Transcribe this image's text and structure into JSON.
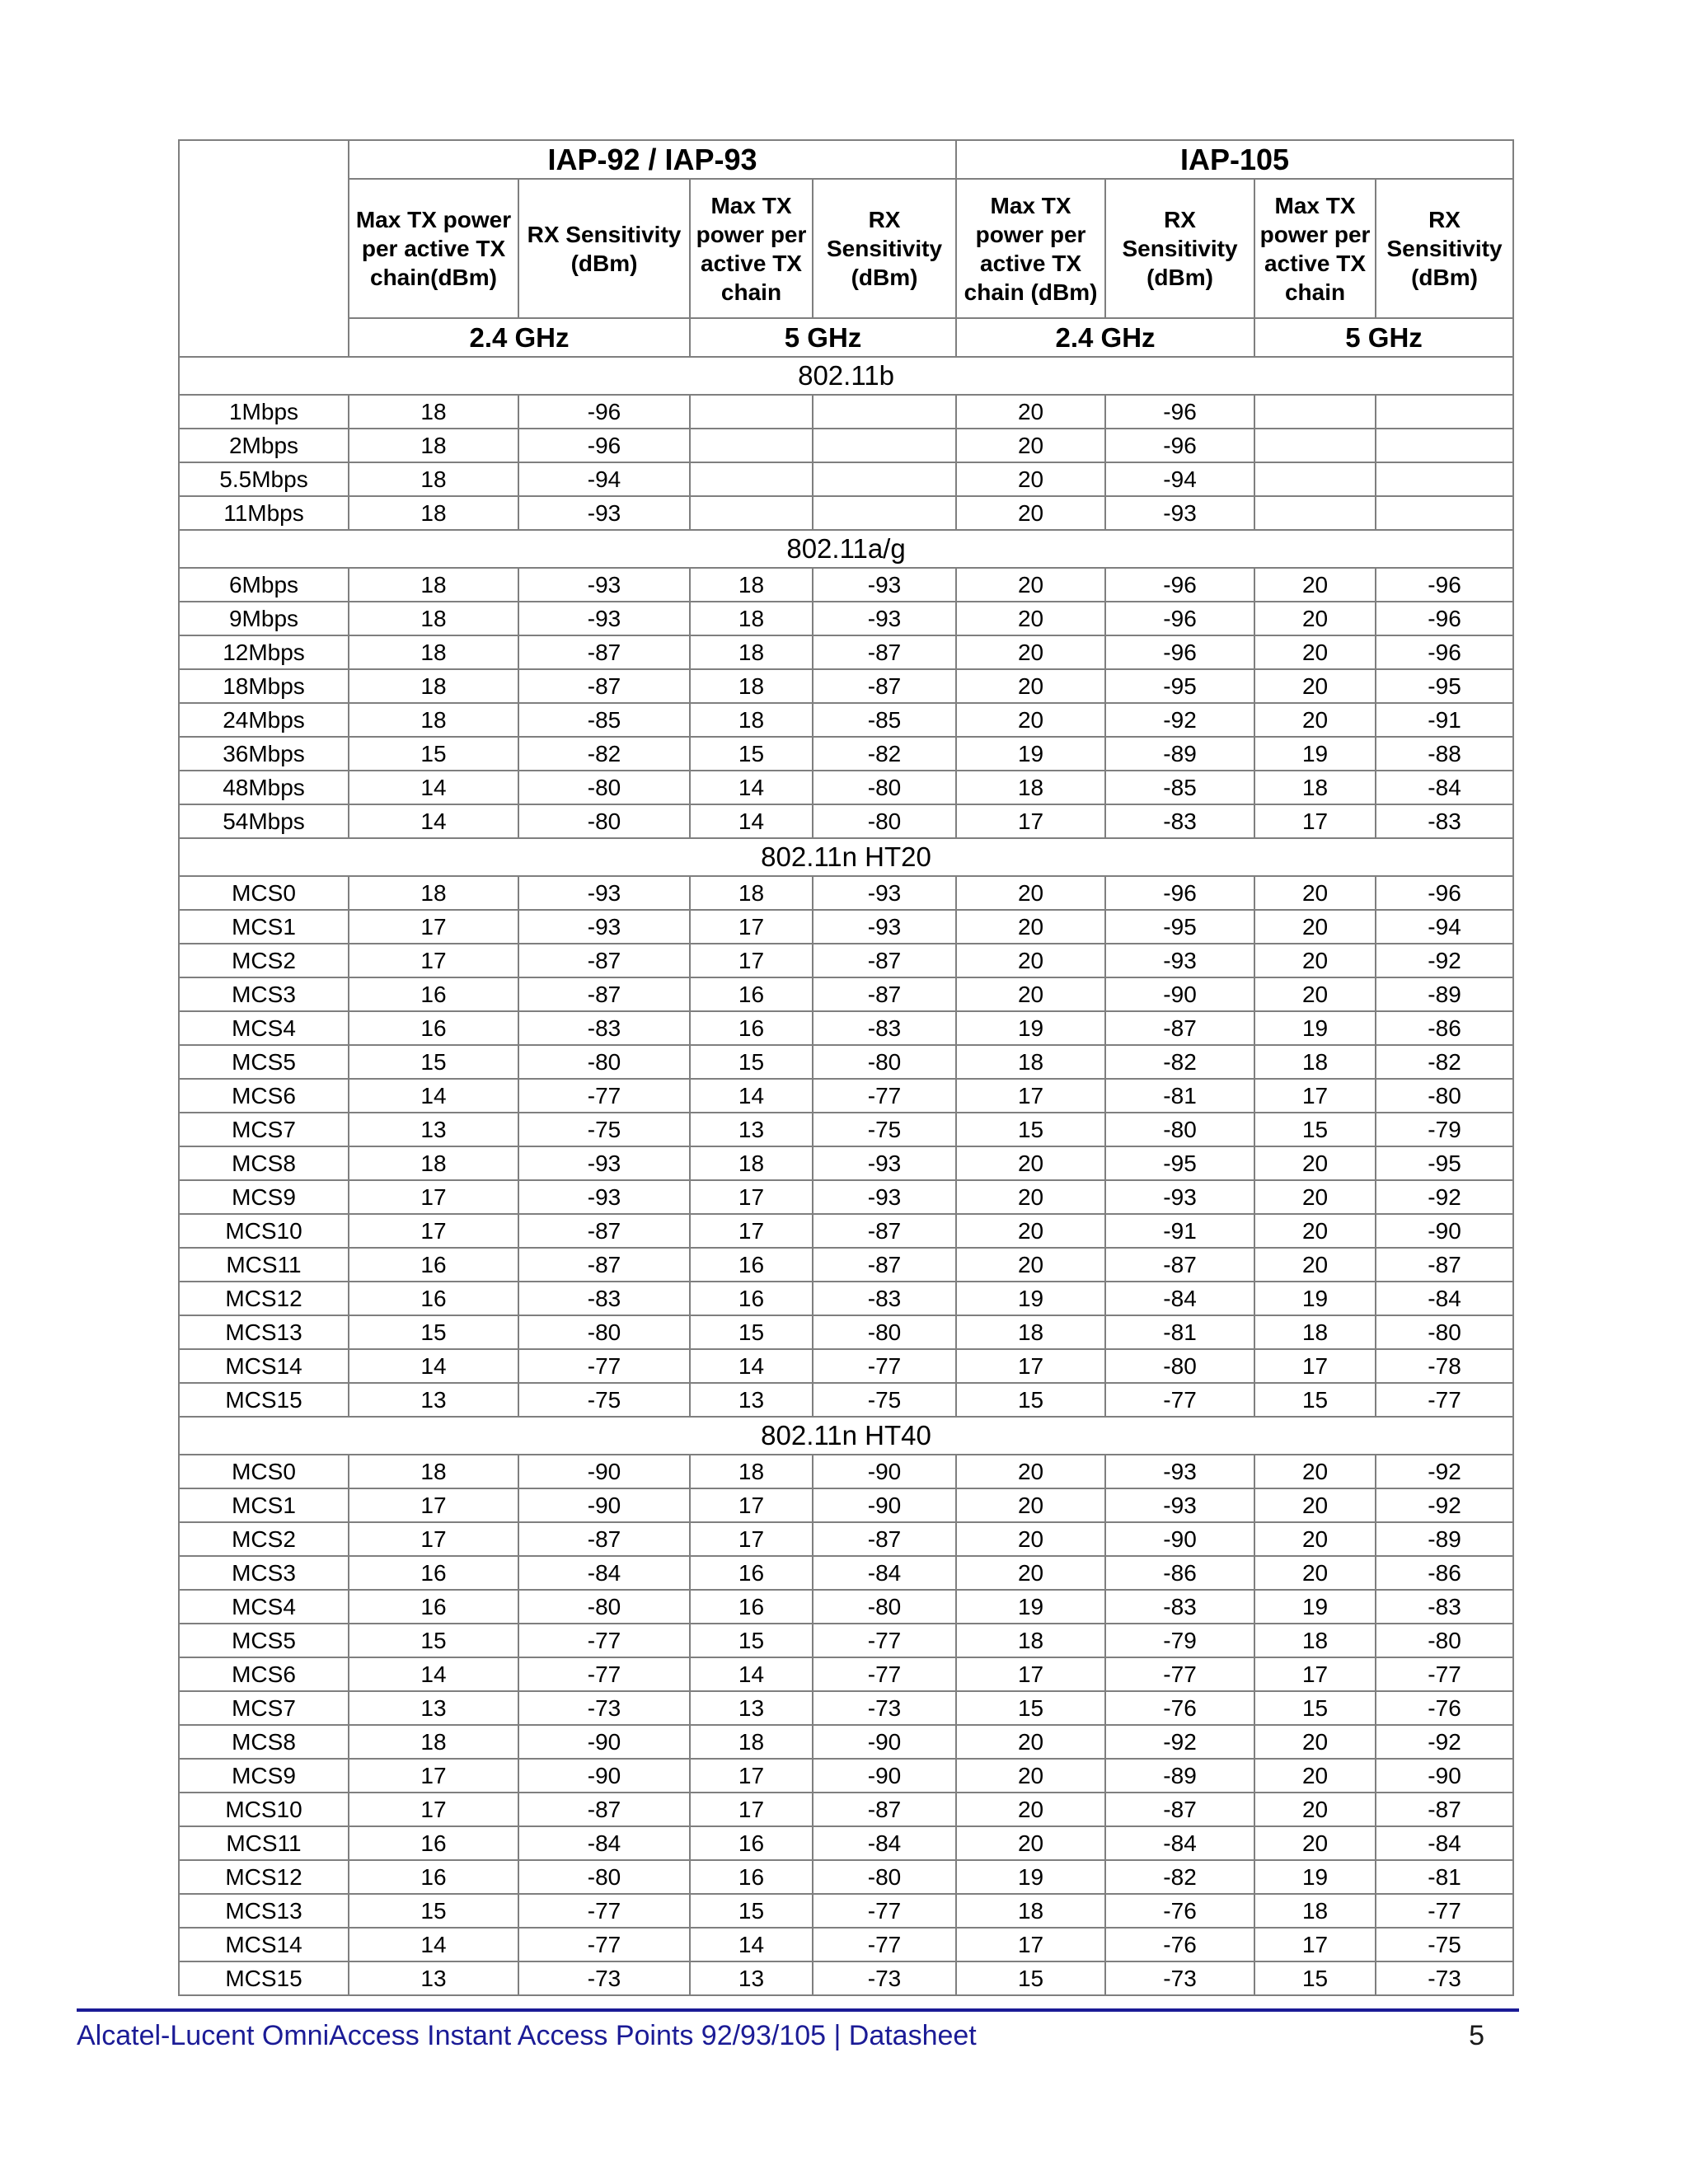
{
  "page": {
    "footer_title": "Alcatel-Lucent OmniAccess Instant Access Points 92/93/105 | Datasheet",
    "page_number": "5"
  },
  "colors": {
    "header_fill": "#94cdda",
    "section_fill": "#dcedf2",
    "border": "#7f7f7f",
    "footer_accent": "#1b1b96",
    "page_number": "#1a1a1a"
  },
  "table": {
    "groups": [
      {
        "label": "IAP-92 / IAP-93"
      },
      {
        "label": "IAP-105"
      }
    ],
    "column_headers": [
      "Max TX power per active TX chain(dBm)",
      "RX Sensitivity (dBm)",
      "Max TX power per active TX chain",
      "RX Sensitivity (dBm)",
      "Max TX power per active TX chain (dBm)",
      "RX Sensitivity (dBm)",
      "Max TX power per active TX chain",
      "RX Sensitivity (dBm)"
    ],
    "band_headers": [
      "2.4 GHz",
      "5 GHz",
      "2.4 GHz",
      "5 GHz"
    ],
    "sections": [
      {
        "label": "802.11b",
        "rows": [
          {
            "label": "1Mbps",
            "values": [
              "18",
              "-96",
              "",
              "",
              "20",
              "-96",
              "",
              ""
            ]
          },
          {
            "label": "2Mbps",
            "values": [
              "18",
              "-96",
              "",
              "",
              "20",
              "-96",
              "",
              ""
            ]
          },
          {
            "label": "5.5Mbps",
            "values": [
              "18",
              "-94",
              "",
              "",
              "20",
              "-94",
              "",
              ""
            ]
          },
          {
            "label": "11Mbps",
            "values": [
              "18",
              "-93",
              "",
              "",
              "20",
              "-93",
              "",
              ""
            ]
          }
        ]
      },
      {
        "label": "802.11a/g",
        "rows": [
          {
            "label": "6Mbps",
            "values": [
              "18",
              "-93",
              "18",
              "-93",
              "20",
              "-96",
              "20",
              "-96"
            ]
          },
          {
            "label": "9Mbps",
            "values": [
              "18",
              "-93",
              "18",
              "-93",
              "20",
              "-96",
              "20",
              "-96"
            ]
          },
          {
            "label": "12Mbps",
            "values": [
              "18",
              "-87",
              "18",
              "-87",
              "20",
              "-96",
              "20",
              "-96"
            ]
          },
          {
            "label": "18Mbps",
            "values": [
              "18",
              "-87",
              "18",
              "-87",
              "20",
              "-95",
              "20",
              "-95"
            ]
          },
          {
            "label": "24Mbps",
            "values": [
              "18",
              "-85",
              "18",
              "-85",
              "20",
              "-92",
              "20",
              "-91"
            ]
          },
          {
            "label": "36Mbps",
            "values": [
              "15",
              "-82",
              "15",
              "-82",
              "19",
              "-89",
              "19",
              "-88"
            ]
          },
          {
            "label": "48Mbps",
            "values": [
              "14",
              "-80",
              "14",
              "-80",
              "18",
              "-85",
              "18",
              "-84"
            ]
          },
          {
            "label": "54Mbps",
            "values": [
              "14",
              "-80",
              "14",
              "-80",
              "17",
              "-83",
              "17",
              "-83"
            ]
          }
        ]
      },
      {
        "label": "802.11n HT20",
        "rows": [
          {
            "label": "MCS0",
            "values": [
              "18",
              "-93",
              "18",
              "-93",
              "20",
              "-96",
              "20",
              "-96"
            ]
          },
          {
            "label": "MCS1",
            "values": [
              "17",
              "-93",
              "17",
              "-93",
              "20",
              "-95",
              "20",
              "-94"
            ]
          },
          {
            "label": "MCS2",
            "values": [
              "17",
              "-87",
              "17",
              "-87",
              "20",
              "-93",
              "20",
              "-92"
            ]
          },
          {
            "label": "MCS3",
            "values": [
              "16",
              "-87",
              "16",
              "-87",
              "20",
              "-90",
              "20",
              "-89"
            ]
          },
          {
            "label": "MCS4",
            "values": [
              "16",
              "-83",
              "16",
              "-83",
              "19",
              "-87",
              "19",
              "-86"
            ]
          },
          {
            "label": "MCS5",
            "values": [
              "15",
              "-80",
              "15",
              "-80",
              "18",
              "-82",
              "18",
              "-82"
            ]
          },
          {
            "label": "MCS6",
            "values": [
              "14",
              "-77",
              "14",
              "-77",
              "17",
              "-81",
              "17",
              "-80"
            ]
          },
          {
            "label": "MCS7",
            "values": [
              "13",
              "-75",
              "13",
              "-75",
              "15",
              "-80",
              "15",
              "-79"
            ]
          },
          {
            "label": "MCS8",
            "values": [
              "18",
              "-93",
              "18",
              "-93",
              "20",
              "-95",
              "20",
              "-95"
            ]
          },
          {
            "label": "MCS9",
            "values": [
              "17",
              "-93",
              "17",
              "-93",
              "20",
              "-93",
              "20",
              "-92"
            ]
          },
          {
            "label": "MCS10",
            "values": [
              "17",
              "-87",
              "17",
              "-87",
              "20",
              "-91",
              "20",
              "-90"
            ]
          },
          {
            "label": "MCS11",
            "values": [
              "16",
              "-87",
              "16",
              "-87",
              "20",
              "-87",
              "20",
              "-87"
            ]
          },
          {
            "label": "MCS12",
            "values": [
              "16",
              "-83",
              "16",
              "-83",
              "19",
              "-84",
              "19",
              "-84"
            ]
          },
          {
            "label": "MCS13",
            "values": [
              "15",
              "-80",
              "15",
              "-80",
              "18",
              "-81",
              "18",
              "-80"
            ]
          },
          {
            "label": "MCS14",
            "values": [
              "14",
              "-77",
              "14",
              "-77",
              "17",
              "-80",
              "17",
              "-78"
            ]
          },
          {
            "label": "MCS15",
            "values": [
              "13",
              "-75",
              "13",
              "-75",
              "15",
              "-77",
              "15",
              "-77"
            ]
          }
        ]
      },
      {
        "label": "802.11n HT40",
        "rows": [
          {
            "label": "MCS0",
            "values": [
              "18",
              "-90",
              "18",
              "-90",
              "20",
              "-93",
              "20",
              "-92"
            ]
          },
          {
            "label": "MCS1",
            "values": [
              "17",
              "-90",
              "17",
              "-90",
              "20",
              "-93",
              "20",
              "-92"
            ]
          },
          {
            "label": "MCS2",
            "values": [
              "17",
              "-87",
              "17",
              "-87",
              "20",
              "-90",
              "20",
              "-89"
            ]
          },
          {
            "label": "MCS3",
            "values": [
              "16",
              "-84",
              "16",
              "-84",
              "20",
              "-86",
              "20",
              "-86"
            ]
          },
          {
            "label": "MCS4",
            "values": [
              "16",
              "-80",
              "16",
              "-80",
              "19",
              "-83",
              "19",
              "-83"
            ]
          },
          {
            "label": "MCS5",
            "values": [
              "15",
              "-77",
              "15",
              "-77",
              "18",
              "-79",
              "18",
              "-80"
            ]
          },
          {
            "label": "MCS6",
            "values": [
              "14",
              "-77",
              "14",
              "-77",
              "17",
              "-77",
              "17",
              "-77"
            ]
          },
          {
            "label": "MCS7",
            "values": [
              "13",
              "-73",
              "13",
              "-73",
              "15",
              "-76",
              "15",
              "-76"
            ]
          },
          {
            "label": "MCS8",
            "values": [
              "18",
              "-90",
              "18",
              "-90",
              "20",
              "-92",
              "20",
              "-92"
            ]
          },
          {
            "label": "MCS9",
            "values": [
              "17",
              "-90",
              "17",
              "-90",
              "20",
              "-89",
              "20",
              "-90"
            ]
          },
          {
            "label": "MCS10",
            "values": [
              "17",
              "-87",
              "17",
              "-87",
              "20",
              "-87",
              "20",
              "-87"
            ]
          },
          {
            "label": "MCS11",
            "values": [
              "16",
              "-84",
              "16",
              "-84",
              "20",
              "-84",
              "20",
              "-84"
            ]
          },
          {
            "label": "MCS12",
            "values": [
              "16",
              "-80",
              "16",
              "-80",
              "19",
              "-82",
              "19",
              "-81"
            ]
          },
          {
            "label": "MCS13",
            "values": [
              "15",
              "-77",
              "15",
              "-77",
              "18",
              "-76",
              "18",
              "-77"
            ]
          },
          {
            "label": "MCS14",
            "values": [
              "14",
              "-77",
              "14",
              "-77",
              "17",
              "-76",
              "17",
              "-75"
            ]
          },
          {
            "label": "MCS15",
            "values": [
              "13",
              "-73",
              "13",
              "-73",
              "15",
              "-73",
              "15",
              "-73"
            ]
          }
        ]
      }
    ]
  }
}
